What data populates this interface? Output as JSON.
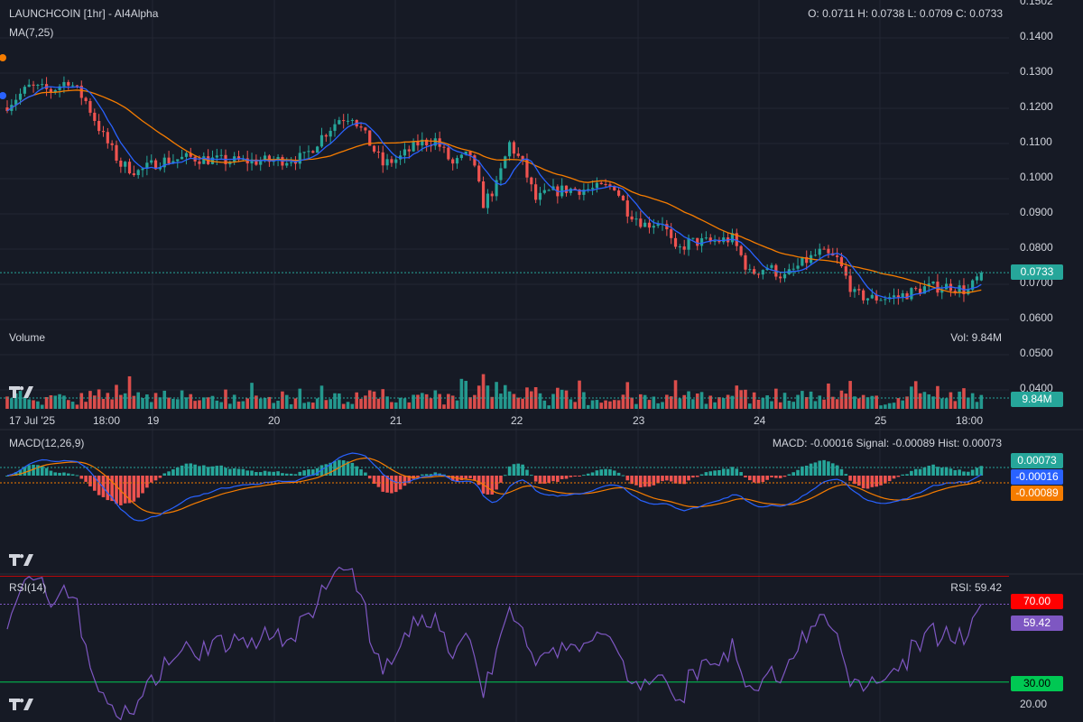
{
  "header": {
    "title": "LAUNCHCOIN [1hr] - AI4Alpha",
    "ohlc": "O: 0.0711 H: 0.0738 L: 0.0709 C: 0.0733",
    "ma_label": "MA(7,25)"
  },
  "volume_panel": {
    "title": "Volume",
    "readout": "Vol: 9.84M",
    "tag": "9.84M"
  },
  "macd_panel": {
    "title": "MACD(12,26,9)",
    "readout": "MACD: -0.00016 Signal: -0.00089 Hist: 0.00073",
    "tags": {
      "hist": "0.00073",
      "macd": "-0.00016",
      "signal": "-0.00089"
    }
  },
  "rsi_panel": {
    "title": "RSI(14)",
    "readout": "RSI: 59.42",
    "tags": {
      "upper": "70.00",
      "value": "59.42",
      "lower": "30.00"
    },
    "axis_tick": "20.00"
  },
  "price_tag": "0.0733",
  "price_axis": [
    "0.1502",
    "0.1400",
    "0.1300",
    "0.1200",
    "0.1100",
    "0.1000",
    "0.0900",
    "0.0800",
    "0.0700",
    "0.0600",
    "0.0500",
    "0.0400"
  ],
  "time_axis": [
    "17 Jul '25",
    "18:00",
    "19",
    "20",
    "21",
    "22",
    "23",
    "24",
    "25",
    "18:00"
  ],
  "colors": {
    "background": "#161a25",
    "up": "#26a69a",
    "down": "#ef5350",
    "ma_fast": "#2962ff",
    "ma_slow": "#f57c00",
    "rsi_line": "#7e57c2",
    "rsi_upper": "#ff0000",
    "rsi_lower": "#00c853"
  },
  "chart_data": {
    "type": "candlestick",
    "title": "LAUNCHCOIN [1hr] - AI4Alpha",
    "timeframe": "1hr",
    "last": {
      "open": 0.0711,
      "high": 0.0738,
      "low": 0.0709,
      "close": 0.0733
    },
    "ylim": [
      0.06,
      0.1502
    ],
    "x_ticks": [
      "17 Jul '25",
      "18:00",
      "19",
      "20",
      "21",
      "22",
      "23",
      "24",
      "25",
      "18:00"
    ],
    "close_path": [
      {
        "x": 0,
        "close": 0.121
      },
      {
        "x": 5,
        "close": 0.126
      },
      {
        "x": 10,
        "close": 0.125
      },
      {
        "x": 14,
        "close": 0.128
      },
      {
        "x": 18,
        "close": 0.122
      },
      {
        "x": 22,
        "close": 0.112
      },
      {
        "x": 26,
        "close": 0.104
      },
      {
        "x": 30,
        "close": 0.102
      },
      {
        "x": 35,
        "close": 0.105
      },
      {
        "x": 42,
        "close": 0.106
      },
      {
        "x": 50,
        "close": 0.105
      },
      {
        "x": 60,
        "close": 0.105
      },
      {
        "x": 68,
        "close": 0.106
      },
      {
        "x": 72,
        "close": 0.112
      },
      {
        "x": 76,
        "close": 0.117
      },
      {
        "x": 79,
        "close": 0.118
      },
      {
        "x": 82,
        "close": 0.112
      },
      {
        "x": 86,
        "close": 0.104
      },
      {
        "x": 90,
        "close": 0.106
      },
      {
        "x": 94,
        "close": 0.11
      },
      {
        "x": 98,
        "close": 0.111
      },
      {
        "x": 102,
        "close": 0.104
      },
      {
        "x": 106,
        "close": 0.107
      },
      {
        "x": 109,
        "close": 0.093
      },
      {
        "x": 112,
        "close": 0.098
      },
      {
        "x": 115,
        "close": 0.11
      },
      {
        "x": 118,
        "close": 0.104
      },
      {
        "x": 121,
        "close": 0.094
      },
      {
        "x": 124,
        "close": 0.096
      },
      {
        "x": 128,
        "close": 0.097
      },
      {
        "x": 134,
        "close": 0.097
      },
      {
        "x": 139,
        "close": 0.098
      },
      {
        "x": 142,
        "close": 0.091
      },
      {
        "x": 146,
        "close": 0.087
      },
      {
        "x": 150,
        "close": 0.088
      },
      {
        "x": 153,
        "close": 0.079
      },
      {
        "x": 156,
        "close": 0.082
      },
      {
        "x": 161,
        "close": 0.082
      },
      {
        "x": 166,
        "close": 0.083
      },
      {
        "x": 170,
        "close": 0.073
      },
      {
        "x": 174,
        "close": 0.075
      },
      {
        "x": 178,
        "close": 0.072
      },
      {
        "x": 182,
        "close": 0.076
      },
      {
        "x": 186,
        "close": 0.079
      },
      {
        "x": 190,
        "close": 0.077
      },
      {
        "x": 194,
        "close": 0.067
      },
      {
        "x": 198,
        "close": 0.066
      },
      {
        "x": 204,
        "close": 0.0665
      },
      {
        "x": 210,
        "close": 0.069
      },
      {
        "x": 216,
        "close": 0.0695
      },
      {
        "x": 220,
        "close": 0.068
      },
      {
        "x": 223,
        "close": 0.0733
      }
    ],
    "volume": {
      "last": "9.84M",
      "ylim": [
        0,
        1
      ]
    },
    "macd": {
      "fast": 12,
      "slow": 26,
      "signal_period": 9,
      "macd": -0.00016,
      "signal": -0.00089,
      "hist": 0.00073
    },
    "rsi": {
      "period": 14,
      "value": 59.42,
      "upper": 70,
      "lower": 30,
      "ylim": [
        20,
        80
      ]
    }
  }
}
